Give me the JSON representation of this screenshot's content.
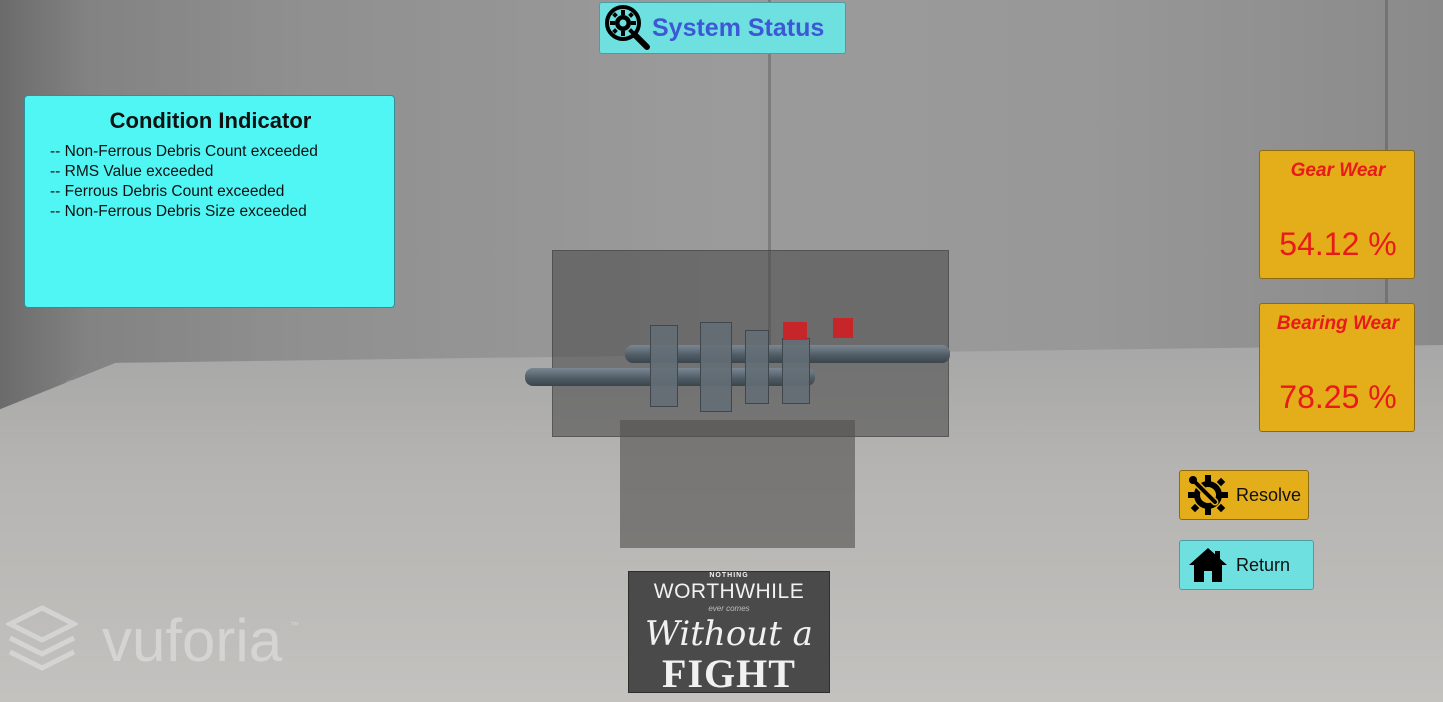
{
  "header": {
    "status_button_label": "System Status"
  },
  "condition_panel": {
    "title": "Condition Indicator",
    "items": [
      "-- Non-Ferrous Debris Count exceeded",
      "-- RMS Value exceeded",
      "-- Ferrous Debris Count exceeded",
      "-- Non-Ferrous Debris Size exceeded"
    ]
  },
  "wear": {
    "gear": {
      "title": "Gear Wear",
      "value": "54.12 %"
    },
    "bearing": {
      "title": "Bearing Wear",
      "value": "78.25 %"
    }
  },
  "actions": {
    "resolve_label": "Resolve",
    "return_label": "Return"
  },
  "poster": {
    "line1": "NOTHING",
    "line2": "WORTHWHILE",
    "line3": "ever comes",
    "line4": "Without a",
    "line5": "FIGHT"
  },
  "watermark": {
    "brand": "vuforia",
    "trademark": "™"
  },
  "colors": {
    "status_button_bg": "#6fe0e0",
    "status_button_text": "#3c58d6",
    "condition_panel_bg": "#4ff6f4",
    "wear_card_bg": "#e4ad1a",
    "wear_text": "#e81a1a",
    "return_button_bg": "#6fe0e0",
    "resolve_button_bg": "#e4ad1a"
  },
  "icons": {
    "status": "magnifier-gear-icon",
    "resolve": "wrench-gear-icon",
    "return": "home-icon",
    "watermark": "vuforia-cube-icon"
  }
}
